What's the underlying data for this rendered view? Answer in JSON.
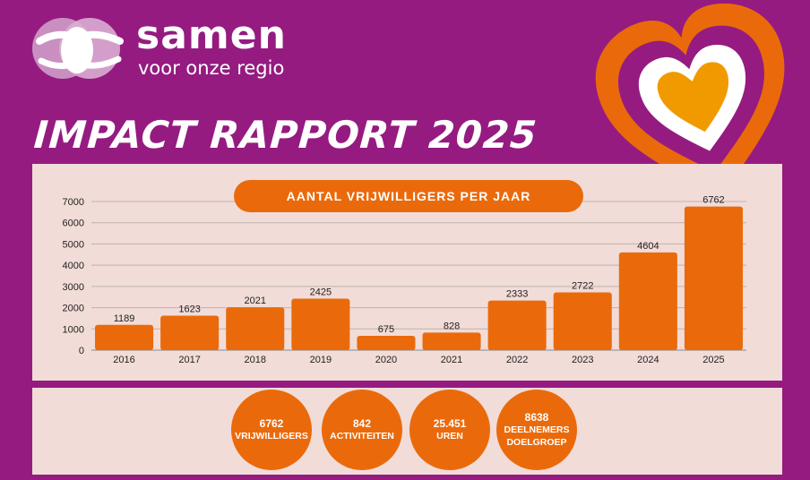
{
  "brand": {
    "name": "samen",
    "tagline": "voor onze regio"
  },
  "report_title": "IMPACT RAPPORT 2025",
  "chart_data": {
    "type": "bar",
    "title": "AANTAL VRIJWILLIGERS PER JAAR",
    "categories": [
      "2016",
      "2017",
      "2018",
      "2019",
      "2020",
      "2021",
      "2022",
      "2023",
      "2024",
      "2025"
    ],
    "values": [
      1189,
      1623,
      2021,
      2425,
      675,
      828,
      2333,
      2722,
      4604,
      6762
    ],
    "ylim": [
      0,
      7000
    ],
    "yticks": [
      0,
      1000,
      2000,
      3000,
      4000,
      5000,
      6000,
      7000
    ],
    "grid": true,
    "bar_color": "#ea6a0b"
  },
  "stats": [
    {
      "value": "6762",
      "label": "VRIJWILLIGERS"
    },
    {
      "value": "842",
      "label": "ACTIVITEITEN"
    },
    {
      "value": "25.451",
      "label": "UREN"
    },
    {
      "value": "8638",
      "label": "DEELNEMERS DOELGROEP"
    }
  ],
  "colors": {
    "background": "#951b81",
    "accent": "#ea6a0b",
    "panel": "#f2dcd8",
    "heart_inner": "#f19a00"
  }
}
